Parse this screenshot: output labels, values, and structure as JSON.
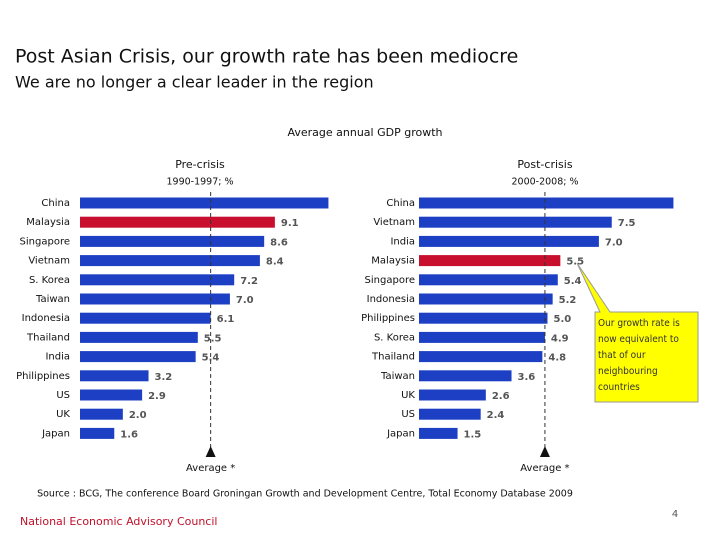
{
  "slide": {
    "title": "Post Asian Crisis, our growth rate has been mediocre",
    "subtitle": "We are no longer a clear leader in the region",
    "header": "Average annual GDP growth",
    "callout": "Our growth rate is now equivalent to that of our neighbouring countries",
    "source": "Source : BCG, The conference Board Groningan Growth and Development Centre, Total Economy Database 2009",
    "footer": "National Economic Advisory Council",
    "page": "4"
  },
  "chart_data": [
    {
      "type": "bar",
      "orientation": "horizontal",
      "title": "Pre-crisis",
      "subtitle": "1990-1997; %",
      "categories": [
        "China",
        "Malaysia",
        "Singapore",
        "Vietnam",
        "S. Korea",
        "Taiwan",
        "Indonesia",
        "Thailand",
        "India",
        "Philippines",
        "US",
        "UK",
        "Japan"
      ],
      "values": [
        11.6,
        9.1,
        8.6,
        8.4,
        7.2,
        7.0,
        6.1,
        5.5,
        5.4,
        3.2,
        2.9,
        2.0,
        1.6
      ],
      "value_labels": [
        null,
        "9.1",
        "8.6",
        "8.4",
        "7.2",
        "7.0",
        "6.1",
        "5.5",
        "5.4",
        "3.2",
        "2.9",
        "2.0",
        "1.6"
      ],
      "colors": [
        "#1c3fc4",
        "#c8102e",
        "#1c3fc4",
        "#1c3fc4",
        "#1c3fc4",
        "#1c3fc4",
        "#1c3fc4",
        "#1c3fc4",
        "#1c3fc4",
        "#1c3fc4",
        "#1c3fc4",
        "#1c3fc4",
        "#1c3fc4"
      ],
      "xlim": [
        0,
        12
      ],
      "average": 6.1,
      "average_label": "Average *"
    },
    {
      "type": "bar",
      "orientation": "horizontal",
      "title": "Post-crisis",
      "subtitle": "2000-2008; %",
      "categories": [
        "China",
        "Vietnam",
        "India",
        "Malaysia",
        "Singapore",
        "Indonesia",
        "Philippines",
        "S. Korea",
        "Thailand",
        "Taiwan",
        "UK",
        "US",
        "Japan"
      ],
      "values": [
        9.9,
        7.5,
        7.0,
        5.5,
        5.4,
        5.2,
        5.0,
        4.9,
        4.8,
        3.6,
        2.6,
        2.4,
        1.5
      ],
      "value_labels": [
        null,
        "7.5",
        "7.0",
        "5.5",
        "5.4",
        "5.2",
        "5.0",
        "4.9",
        "4.8",
        "3.6",
        "2.6",
        "2.4",
        "1.5"
      ],
      "colors": [
        "#1c3fc4",
        "#1c3fc4",
        "#1c3fc4",
        "#c8102e",
        "#1c3fc4",
        "#1c3fc4",
        "#1c3fc4",
        "#1c3fc4",
        "#1c3fc4",
        "#1c3fc4",
        "#1c3fc4",
        "#1c3fc4",
        "#1c3fc4"
      ],
      "xlim": [
        0,
        10
      ],
      "average": 4.9,
      "average_label": "Average *"
    }
  ]
}
